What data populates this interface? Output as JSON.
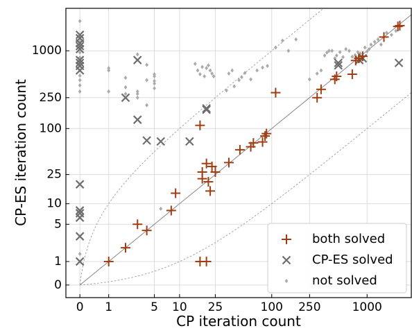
{
  "chart_data": {
    "type": "scatter",
    "title": "",
    "xlabel": "CP iteration count",
    "ylabel": "CP-ES iteration count",
    "xscale": "symlog",
    "yscale": "symlog",
    "xlim": [
      -0.4,
      2900
    ],
    "ylim": [
      -0.45,
      3500
    ],
    "x_ticks": [
      0,
      1,
      5,
      10,
      25,
      100,
      250,
      1000
    ],
    "x_tick_labels": [
      "0",
      "1",
      "5",
      "10",
      "25",
      "100",
      "250",
      "1000"
    ],
    "y_ticks": [
      0,
      1,
      5,
      10,
      25,
      100,
      250,
      1000
    ],
    "y_tick_labels": [
      "0",
      "1",
      "5",
      "10",
      "25",
      "100",
      "250",
      "1000"
    ],
    "grid": true,
    "legend_position": "bottom-right",
    "reference_lines": [
      {
        "name": "y = x",
        "factor": 1,
        "style": "solid",
        "color": "#888888"
      },
      {
        "name": "y = 10x",
        "factor": 10,
        "style": "dotted",
        "color": "#999999"
      },
      {
        "name": "y = x/10",
        "factor": 0.1,
        "style": "dotted",
        "color": "#999999"
      }
    ],
    "series": [
      {
        "name": "not solved",
        "marker": "diamond",
        "color": "#aaaaaa",
        "points": [
          [
            0,
            2400
          ],
          [
            0,
            1500
          ],
          [
            0,
            1300
          ],
          [
            0,
            1100
          ],
          [
            0,
            950
          ],
          [
            0,
            820
          ],
          [
            0,
            720
          ],
          [
            0,
            640
          ],
          [
            0,
            560
          ],
          [
            0,
            480
          ],
          [
            0,
            420
          ],
          [
            0,
            360
          ],
          [
            0,
            300
          ],
          [
            0,
            1.5
          ],
          [
            1,
            600
          ],
          [
            1,
            560
          ],
          [
            1,
            300
          ],
          [
            2,
            450
          ],
          [
            2,
            340
          ],
          [
            2,
            280
          ],
          [
            3,
            300
          ],
          [
            3,
            280
          ],
          [
            3,
            250
          ],
          [
            3,
            900
          ],
          [
            4,
            420
          ],
          [
            4,
            200
          ],
          [
            4,
            660
          ],
          [
            5,
            500
          ],
          [
            5,
            470
          ],
          [
            5,
            410
          ],
          [
            5,
            380
          ],
          [
            5,
            330
          ],
          [
            6,
            8.5
          ],
          [
            15,
            680
          ],
          [
            16,
            560
          ],
          [
            17,
            500
          ],
          [
            18,
            620
          ],
          [
            19,
            470
          ],
          [
            20,
            600
          ],
          [
            21,
            650
          ],
          [
            22,
            560
          ],
          [
            23,
            510
          ],
          [
            24,
            470
          ],
          [
            33,
            310
          ],
          [
            35,
            510
          ],
          [
            38,
            560
          ],
          [
            40,
            350
          ],
          [
            45,
            420
          ],
          [
            48,
            460
          ],
          [
            52,
            520
          ],
          [
            60,
            430
          ],
          [
            70,
            560
          ],
          [
            80,
            610
          ],
          [
            90,
            640
          ],
          [
            110,
            1100
          ],
          [
            130,
            1350
          ],
          [
            150,
            1000
          ],
          [
            180,
            1400
          ],
          [
            250,
            430
          ],
          [
            300,
            510
          ],
          [
            330,
            560
          ],
          [
            360,
            870
          ],
          [
            380,
            950
          ],
          [
            400,
            1000
          ],
          [
            430,
            1000
          ],
          [
            460,
            800
          ],
          [
            480,
            870
          ],
          [
            520,
            960
          ],
          [
            560,
            830
          ],
          [
            600,
            1050
          ],
          [
            650,
            1000
          ],
          [
            700,
            840
          ],
          [
            750,
            880
          ],
          [
            800,
            960
          ],
          [
            850,
            920
          ],
          [
            900,
            810
          ],
          [
            950,
            1100
          ],
          [
            1000,
            980
          ],
          [
            1050,
            1050
          ],
          [
            1100,
            1200
          ],
          [
            1200,
            1300
          ],
          [
            1300,
            1400
          ],
          [
            1400,
            1200
          ],
          [
            1600,
            1700
          ],
          [
            1800,
            1600
          ],
          [
            2000,
            1800
          ]
        ]
      },
      {
        "name": "CP-ES solved",
        "marker": "x",
        "color": "#6e6e6e",
        "points": [
          [
            0,
            1600
          ],
          [
            0,
            1450
          ],
          [
            0,
            1250
          ],
          [
            0,
            1150
          ],
          [
            0,
            1050
          ],
          [
            0,
            760
          ],
          [
            0,
            700
          ],
          [
            0,
            640
          ],
          [
            0,
            560
          ],
          [
            0,
            18.5
          ],
          [
            0,
            8
          ],
          [
            0,
            7.3
          ],
          [
            0,
            6.3
          ],
          [
            0,
            3.2
          ],
          [
            0,
            1
          ],
          [
            2,
            250
          ],
          [
            3,
            760
          ],
          [
            3,
            130
          ],
          [
            4,
            70
          ],
          [
            6,
            68
          ],
          [
            13,
            68
          ],
          [
            20,
            175
          ],
          [
            20,
            182
          ],
          [
            500,
            650
          ],
          [
            500,
            700
          ],
          [
            830,
            760
          ],
          [
            900,
            800
          ],
          [
            2150,
            700
          ]
        ]
      },
      {
        "name": "both solved",
        "marker": "plus",
        "color": "#a03c10",
        "points": [
          [
            1,
            1
          ],
          [
            2,
            2
          ],
          [
            3,
            5
          ],
          [
            4,
            4
          ],
          [
            8,
            8
          ],
          [
            9,
            14
          ],
          [
            17,
            1
          ],
          [
            20,
            1
          ],
          [
            17,
            110
          ],
          [
            18,
            27
          ],
          [
            18,
            22
          ],
          [
            20,
            35
          ],
          [
            21,
            20
          ],
          [
            22,
            15
          ],
          [
            23,
            32
          ],
          [
            25,
            27
          ],
          [
            35,
            36
          ],
          [
            46,
            53
          ],
          [
            60,
            58
          ],
          [
            64,
            65
          ],
          [
            80,
            67
          ],
          [
            85,
            80
          ],
          [
            88,
            86
          ],
          [
            110,
            290
          ],
          [
            300,
            250
          ],
          [
            330,
            320
          ],
          [
            460,
            430
          ],
          [
            480,
            470
          ],
          [
            700,
            500
          ],
          [
            760,
            750
          ],
          [
            820,
            800
          ],
          [
            900,
            850
          ],
          [
            1500,
            1500
          ],
          [
            2100,
            2050
          ],
          [
            2200,
            2100
          ]
        ]
      }
    ]
  }
}
